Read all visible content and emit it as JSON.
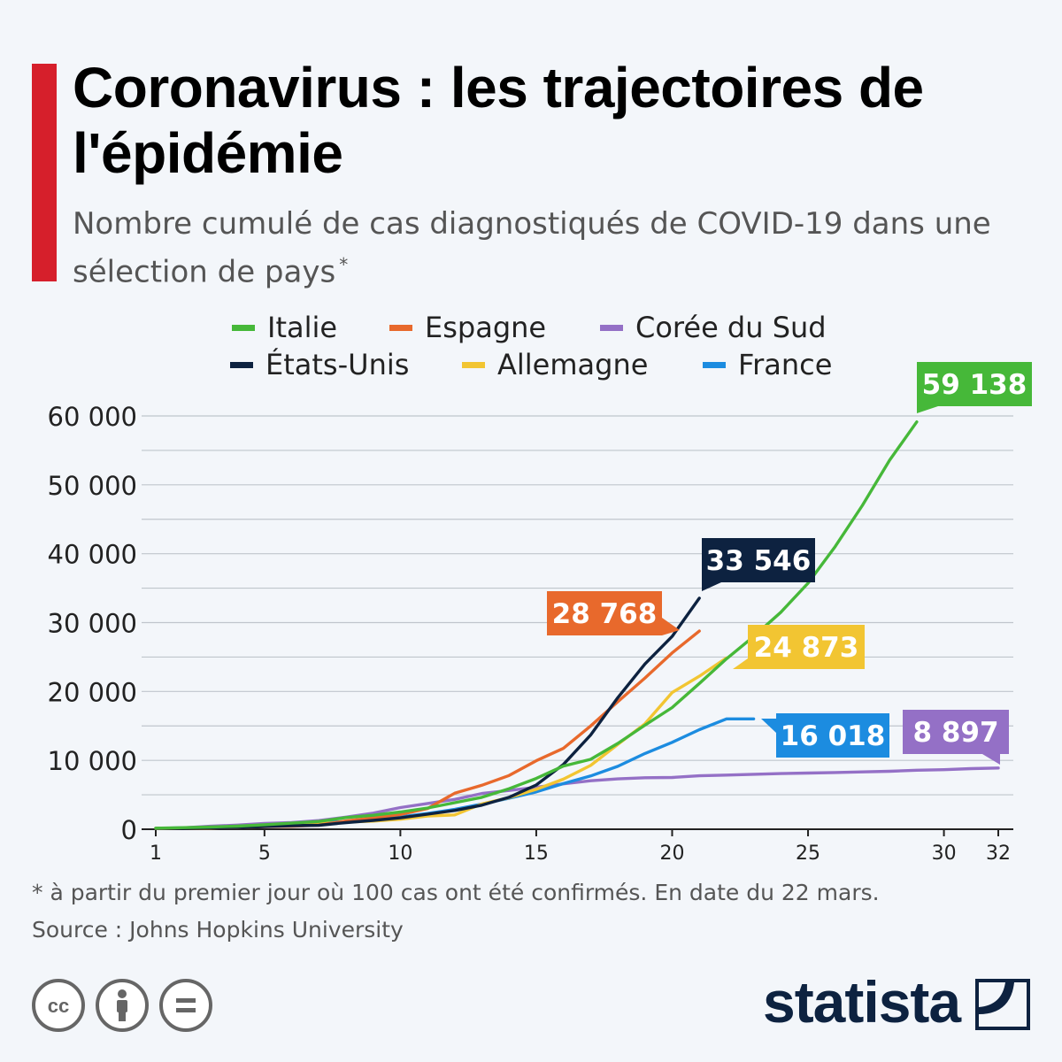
{
  "header": {
    "title": "Coronavirus : les trajectoires de l'épidémie",
    "subtitle": "Nombre cumulé de cas diagnostiqués de COVID-19 dans une sélection de pays",
    "subtitle_mark": "*"
  },
  "chart_data": {
    "type": "line",
    "xlim": [
      1,
      32
    ],
    "ylim": [
      0,
      60000
    ],
    "x_ticks": [
      1,
      5,
      10,
      15,
      20,
      25,
      30,
      32
    ],
    "y_ticks": [
      0,
      10000,
      20000,
      30000,
      40000,
      50000,
      60000
    ],
    "y_tick_labels": [
      "0",
      "10 000",
      "20 000",
      "30 000",
      "40 000",
      "50 000",
      "60 000"
    ],
    "grid": true,
    "legend_position": "top",
    "series": [
      {
        "name": "Italie",
        "color": "#46b839",
        "end_label": "59 138",
        "x": [
          1,
          2,
          3,
          4,
          5,
          6,
          7,
          8,
          9,
          10,
          11,
          12,
          13,
          14,
          15,
          16,
          17,
          18,
          19,
          20,
          21,
          22,
          23,
          24,
          25,
          26,
          27,
          28,
          29
        ],
        "y": [
          155,
          229,
          322,
          453,
          655,
          888,
          1128,
          1694,
          2036,
          2502,
          3089,
          3858,
          4636,
          5883,
          7375,
          9172,
          10149,
          12462,
          15113,
          17660,
          21157,
          24747,
          27980,
          31506,
          35713,
          41035,
          47021,
          53578,
          59138
        ]
      },
      {
        "name": "Espagne",
        "color": "#e8692c",
        "end_label": "28 768",
        "x": [
          1,
          2,
          3,
          4,
          5,
          6,
          7,
          8,
          9,
          10,
          11,
          12,
          13,
          14,
          15,
          16,
          17,
          18,
          19,
          20,
          21
        ],
        "y": [
          114,
          151,
          200,
          261,
          374,
          430,
          589,
          1204,
          1639,
          2140,
          3004,
          5232,
          6391,
          7798,
          9942,
          11748,
          14991,
          18517,
          21959,
          25600,
          28768
        ]
      },
      {
        "name": "Corée du Sud",
        "color": "#9470c6",
        "end_label": "8 897",
        "x": [
          1,
          2,
          3,
          4,
          5,
          6,
          7,
          8,
          9,
          10,
          11,
          12,
          13,
          14,
          15,
          16,
          17,
          18,
          19,
          20,
          21,
          22,
          23,
          24,
          25,
          26,
          27,
          28,
          29,
          30,
          31,
          32
        ],
        "y": [
          104,
          204,
          433,
          602,
          833,
          977,
          1261,
          1766,
          2337,
          3150,
          3736,
          4335,
          5186,
          5621,
          6088,
          6593,
          7041,
          7314,
          7478,
          7513,
          7755,
          7869,
          7979,
          8086,
          8162,
          8236,
          8320,
          8413,
          8565,
          8652,
          8799,
          8897
        ]
      },
      {
        "name": "États-Unis",
        "color": "#0d2240",
        "end_label": "33 546",
        "x": [
          1,
          2,
          3,
          4,
          5,
          6,
          7,
          8,
          9,
          10,
          11,
          12,
          13,
          14,
          15,
          16,
          17,
          18,
          19,
          20,
          21
        ],
        "y": [
          118,
          149,
          217,
          262,
          402,
          518,
          583,
          959,
          1281,
          1663,
          2179,
          2727,
          3499,
          4632,
          6421,
          9407,
          13677,
          19100,
          24000,
          28000,
          33546
        ]
      },
      {
        "name": "Allemagne",
        "color": "#f2c532",
        "end_label": "24 873",
        "x": [
          1,
          2,
          3,
          4,
          5,
          6,
          7,
          8,
          9,
          10,
          11,
          12,
          13,
          14,
          15,
          16,
          17,
          18,
          19,
          20,
          21,
          22
        ],
        "y": [
          130,
          159,
          196,
          262,
          482,
          670,
          799,
          1040,
          1176,
          1457,
          1908,
          2078,
          3675,
          4585,
          5795,
          7272,
          9257,
          12327,
          15320,
          19848,
          22213,
          24873
        ]
      },
      {
        "name": "France",
        "color": "#1c8ce0",
        "end_label": "16 018",
        "x": [
          1,
          2,
          3,
          4,
          5,
          6,
          7,
          8,
          9,
          10,
          11,
          12,
          13,
          14,
          15,
          16,
          17,
          18,
          19,
          20,
          21,
          22,
          23
        ],
        "y": [
          130,
          191,
          212,
          285,
          423,
          613,
          949,
          1126,
          1209,
          1784,
          2281,
          2876,
          3661,
          4499,
          5423,
          6633,
          7730,
          9134,
          10995,
          12612,
          14459,
          16018,
          16018
        ]
      }
    ]
  },
  "footnote": {
    "note": "* à partir du premier jour où 100 cas ont été confirmés. En date du 22 mars.",
    "source": "Source : Johns Hopkins University"
  },
  "license_icons": [
    "cc-icon",
    "person-icon",
    "equal-icon"
  ],
  "brand": {
    "name": "statista",
    "color": "#0d2240"
  }
}
